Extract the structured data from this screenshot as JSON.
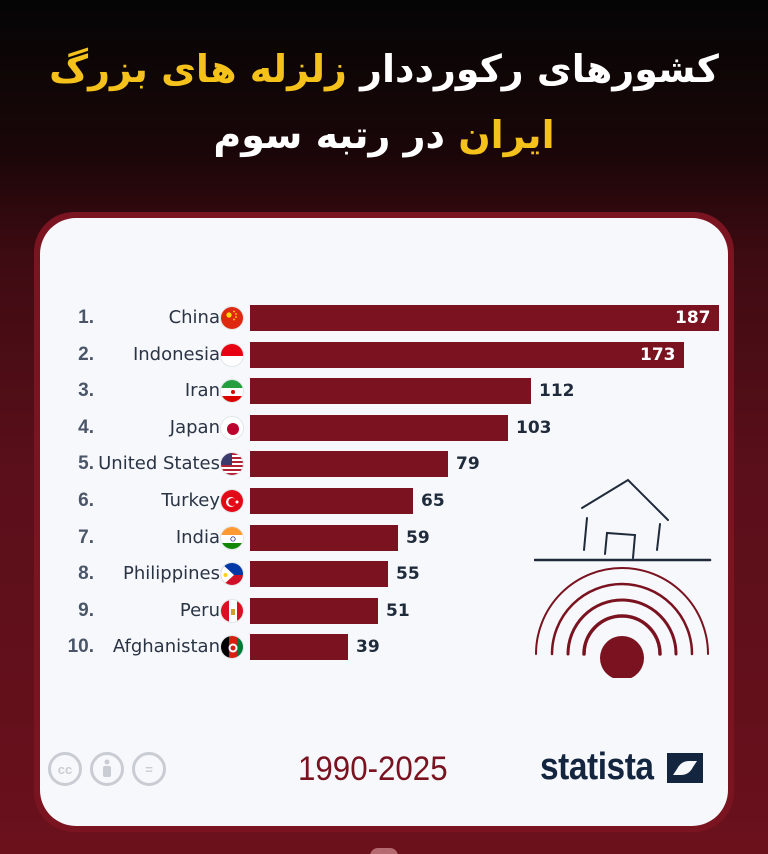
{
  "headline": {
    "line1_white": "کشورهای رکورددار",
    "line1_highlight": "زلزله های بزرگ",
    "line2_highlight": "ایران",
    "line2_white": "در رتبه سوم"
  },
  "colors": {
    "bar": "#7a1220",
    "highlight": "#f5c21b",
    "brand": "#14263f",
    "card_bg": "#f6f8fb"
  },
  "footer": {
    "years": "1990-2025",
    "brand": "statista",
    "license_icons": [
      "cc",
      "by",
      "nd"
    ],
    "license_labels": [
      "cc",
      "",
      "="
    ]
  },
  "chart_data": {
    "type": "bar",
    "orientation": "horizontal",
    "title": "کشورهای رکورددار زلزله های بزرگ — ایران در رتبه سوم",
    "subtitle": "1990-2025",
    "xlabel": "",
    "ylabel": "",
    "grid": false,
    "legend": null,
    "xlim": [
      0,
      187
    ],
    "categories": [
      "China",
      "Indonesia",
      "Iran",
      "Japan",
      "United States",
      "Turkey",
      "India",
      "Philippines",
      "Peru",
      "Afghanistan"
    ],
    "ranks": [
      "1.",
      "2.",
      "3.",
      "4.",
      "5.",
      "6.",
      "7.",
      "8.",
      "9.",
      "10."
    ],
    "values": [
      187,
      173,
      112,
      103,
      79,
      65,
      59,
      55,
      51,
      39
    ],
    "labels": [
      "187",
      "173",
      "112",
      "103",
      "79",
      "65",
      "59",
      "55",
      "51",
      "39"
    ],
    "flags": [
      "china-flag",
      "indonesia-flag",
      "iran-flag",
      "japan-flag",
      "usa-flag",
      "turkey-flag",
      "india-flag",
      "philippines-flag",
      "peru-flag",
      "afghanistan-flag"
    ],
    "source": "statista"
  }
}
